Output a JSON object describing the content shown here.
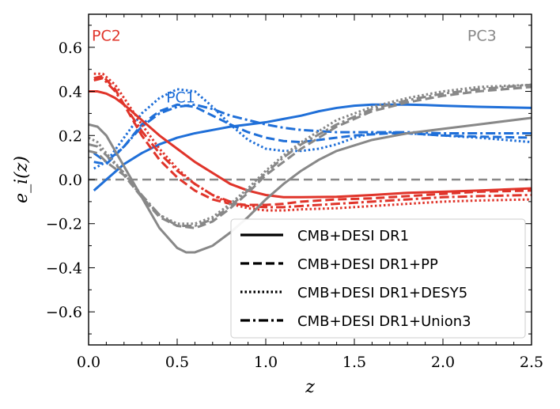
{
  "chart_data": {
    "type": "line",
    "xlabel": "z",
    "ylabel": "e_i(z)",
    "xlim": [
      0.0,
      2.5
    ],
    "ylim": [
      -0.75,
      0.75
    ],
    "xticks": [
      0.0,
      0.5,
      1.0,
      1.5,
      2.0,
      2.5
    ],
    "xtick_labels": [
      "0.0",
      "0.5",
      "1.0",
      "1.5",
      "2.0",
      "2.5"
    ],
    "yticks": [
      0.6,
      0.4,
      0.2,
      0.0,
      -0.2,
      -0.4,
      -0.6
    ],
    "ytick_labels": [
      "0.6",
      "0.4",
      "0.2",
      "0.0",
      "−0.2",
      "−0.4",
      "−0.6"
    ],
    "colors": {
      "PC1": "#1f6fd8",
      "PC2": "#e0342a",
      "PC3": "#888888"
    },
    "annotations": [
      {
        "text": "PC2",
        "component": "PC2",
        "x": 0.1,
        "y": 0.63
      },
      {
        "text": "PC1",
        "component": "PC1",
        "x": 0.52,
        "y": 0.35
      },
      {
        "text": "PC3",
        "component": "PC3",
        "x": 2.22,
        "y": 0.63
      }
    ],
    "legend": {
      "location": "lower-right",
      "entries": [
        {
          "label": "CMB+DESI DR1",
          "style": "solid"
        },
        {
          "label": "CMB+DESI DR1+PP",
          "style": "dashed"
        },
        {
          "label": "CMB+DESI DR1+DESY5",
          "style": "dotted"
        },
        {
          "label": "CMB+DESI DR1+Union3",
          "style": "dashdot"
        }
      ]
    },
    "series": [
      {
        "name": "PC1 CMB+DESI DR1",
        "component": "PC1",
        "style": "solid",
        "x": [
          0.03,
          0.1,
          0.2,
          0.3,
          0.4,
          0.5,
          0.6,
          0.7,
          0.8,
          0.9,
          1.0,
          1.1,
          1.2,
          1.3,
          1.4,
          1.5,
          1.6,
          1.7,
          1.8,
          1.9,
          2.0,
          2.2,
          2.5
        ],
        "y": [
          -0.05,
          0.0,
          0.07,
          0.12,
          0.16,
          0.19,
          0.21,
          0.225,
          0.24,
          0.25,
          0.26,
          0.275,
          0.29,
          0.31,
          0.325,
          0.335,
          0.34,
          0.34,
          0.34,
          0.338,
          0.335,
          0.33,
          0.325
        ]
      },
      {
        "name": "PC1 CMB+DESI DR1+PP",
        "component": "PC1",
        "style": "dashed",
        "x": [
          0.03,
          0.1,
          0.2,
          0.3,
          0.4,
          0.5,
          0.6,
          0.7,
          0.8,
          0.9,
          1.0,
          1.1,
          1.2,
          1.3,
          1.4,
          1.5,
          1.6,
          1.7,
          1.8,
          2.0,
          2.2,
          2.5
        ],
        "y": [
          0.08,
          0.07,
          0.15,
          0.25,
          0.31,
          0.34,
          0.33,
          0.29,
          0.25,
          0.215,
          0.19,
          0.175,
          0.17,
          0.18,
          0.19,
          0.2,
          0.205,
          0.21,
          0.21,
          0.2,
          0.195,
          0.19
        ]
      },
      {
        "name": "PC1 CMB+DESI DR1+DESY5",
        "component": "PC1",
        "style": "dotted",
        "x": [
          0.03,
          0.1,
          0.2,
          0.3,
          0.4,
          0.5,
          0.6,
          0.7,
          0.8,
          0.9,
          1.0,
          1.1,
          1.2,
          1.3,
          1.4,
          1.5,
          1.6,
          1.7,
          1.8,
          2.0,
          2.2,
          2.5
        ],
        "y": [
          0.05,
          0.08,
          0.19,
          0.3,
          0.37,
          0.41,
          0.4,
          0.33,
          0.25,
          0.18,
          0.14,
          0.13,
          0.13,
          0.14,
          0.16,
          0.19,
          0.21,
          0.215,
          0.21,
          0.2,
          0.19,
          0.17
        ]
      },
      {
        "name": "PC1 CMB+DESI DR1+Union3",
        "component": "PC1",
        "style": "dashdot",
        "x": [
          0.03,
          0.1,
          0.2,
          0.3,
          0.4,
          0.5,
          0.6,
          0.7,
          0.8,
          0.9,
          1.0,
          1.1,
          1.2,
          1.3,
          1.4,
          1.5,
          1.6,
          1.7,
          1.8,
          2.0,
          2.2,
          2.5
        ],
        "y": [
          0.12,
          0.08,
          0.15,
          0.24,
          0.3,
          0.33,
          0.34,
          0.32,
          0.29,
          0.27,
          0.25,
          0.235,
          0.225,
          0.22,
          0.215,
          0.215,
          0.215,
          0.215,
          0.215,
          0.21,
          0.21,
          0.21
        ]
      },
      {
        "name": "PC2 CMB+DESI DR1",
        "component": "PC2",
        "style": "solid",
        "x": [
          0.0,
          0.05,
          0.1,
          0.15,
          0.2,
          0.3,
          0.4,
          0.5,
          0.6,
          0.7,
          0.8,
          0.9,
          1.0,
          1.1,
          1.2,
          1.4,
          1.6,
          1.8,
          2.0,
          2.2,
          2.5
        ],
        "y": [
          0.4,
          0.4,
          0.39,
          0.37,
          0.34,
          0.27,
          0.2,
          0.14,
          0.08,
          0.03,
          -0.02,
          -0.05,
          -0.07,
          -0.08,
          -0.08,
          -0.078,
          -0.07,
          -0.06,
          -0.055,
          -0.05,
          -0.04
        ]
      },
      {
        "name": "PC2 CMB+DESI DR1+PP",
        "component": "PC2",
        "style": "dashed",
        "x": [
          0.03,
          0.08,
          0.15,
          0.2,
          0.3,
          0.4,
          0.5,
          0.6,
          0.7,
          0.8,
          0.9,
          1.0,
          1.1,
          1.2,
          1.4,
          1.6,
          1.8,
          2.0,
          2.2,
          2.5
        ],
        "y": [
          0.46,
          0.47,
          0.41,
          0.34,
          0.2,
          0.09,
          0.01,
          -0.05,
          -0.09,
          -0.11,
          -0.115,
          -0.115,
          -0.11,
          -0.1,
          -0.09,
          -0.085,
          -0.075,
          -0.065,
          -0.055,
          -0.05
        ]
      },
      {
        "name": "PC2 CMB+DESI DR1+DESY5",
        "component": "PC2",
        "style": "dotted",
        "x": [
          0.03,
          0.08,
          0.15,
          0.2,
          0.3,
          0.4,
          0.5,
          0.6,
          0.7,
          0.8,
          0.9,
          1.0,
          1.1,
          1.2,
          1.4,
          1.6,
          1.8,
          2.0,
          2.2,
          2.5
        ],
        "y": [
          0.48,
          0.48,
          0.43,
          0.37,
          0.25,
          0.14,
          0.05,
          -0.02,
          -0.07,
          -0.11,
          -0.13,
          -0.14,
          -0.14,
          -0.135,
          -0.13,
          -0.12,
          -0.11,
          -0.1,
          -0.095,
          -0.09
        ]
      },
      {
        "name": "PC2 CMB+DESI DR1+Union3",
        "component": "PC2",
        "style": "dashdot",
        "x": [
          0.03,
          0.08,
          0.15,
          0.2,
          0.3,
          0.4,
          0.5,
          0.6,
          0.7,
          0.8,
          0.9,
          1.0,
          1.1,
          1.2,
          1.4,
          1.6,
          1.8,
          2.0,
          2.2,
          2.5
        ],
        "y": [
          0.45,
          0.46,
          0.4,
          0.34,
          0.22,
          0.12,
          0.04,
          -0.02,
          -0.07,
          -0.1,
          -0.12,
          -0.125,
          -0.125,
          -0.12,
          -0.11,
          -0.1,
          -0.09,
          -0.08,
          -0.075,
          -0.07
        ]
      },
      {
        "name": "PC3 CMB+DESI DR1",
        "component": "PC3",
        "style": "solid",
        "x": [
          0.0,
          0.05,
          0.1,
          0.15,
          0.2,
          0.3,
          0.4,
          0.5,
          0.55,
          0.6,
          0.7,
          0.8,
          0.9,
          1.0,
          1.1,
          1.2,
          1.3,
          1.4,
          1.6,
          1.8,
          2.0,
          2.2,
          2.5
        ],
        "y": [
          0.25,
          0.24,
          0.2,
          0.13,
          0.06,
          -0.08,
          -0.22,
          -0.31,
          -0.33,
          -0.33,
          -0.3,
          -0.24,
          -0.17,
          -0.09,
          -0.02,
          0.04,
          0.09,
          0.13,
          0.18,
          0.21,
          0.23,
          0.25,
          0.28
        ]
      },
      {
        "name": "PC3 CMB+DESI DR1+PP",
        "component": "PC3",
        "style": "dashed",
        "x": [
          0.0,
          0.05,
          0.1,
          0.2,
          0.3,
          0.4,
          0.5,
          0.6,
          0.7,
          0.8,
          0.9,
          1.0,
          1.1,
          1.2,
          1.4,
          1.6,
          1.8,
          2.0,
          2.2,
          2.5
        ],
        "y": [
          0.13,
          0.12,
          0.08,
          0.02,
          -0.08,
          -0.17,
          -0.21,
          -0.22,
          -0.19,
          -0.13,
          -0.06,
          0.02,
          0.08,
          0.14,
          0.24,
          0.31,
          0.35,
          0.38,
          0.4,
          0.42
        ]
      },
      {
        "name": "PC3 CMB+DESI DR1+DESY5",
        "component": "PC3",
        "style": "dotted",
        "x": [
          0.0,
          0.05,
          0.1,
          0.2,
          0.3,
          0.4,
          0.5,
          0.6,
          0.7,
          0.8,
          0.9,
          1.0,
          1.1,
          1.2,
          1.4,
          1.6,
          1.8,
          2.0,
          2.2,
          2.5
        ],
        "y": [
          0.19,
          0.17,
          0.12,
          0.03,
          -0.08,
          -0.16,
          -0.2,
          -0.2,
          -0.17,
          -0.11,
          -0.04,
          0.04,
          0.11,
          0.17,
          0.27,
          0.33,
          0.37,
          0.4,
          0.42,
          0.43
        ]
      },
      {
        "name": "PC3 CMB+DESI DR1+Union3",
        "component": "PC3",
        "style": "dashdot",
        "x": [
          0.0,
          0.05,
          0.1,
          0.2,
          0.3,
          0.4,
          0.5,
          0.6,
          0.7,
          0.8,
          0.9,
          1.0,
          1.1,
          1.2,
          1.4,
          1.6,
          1.8,
          2.0,
          2.2,
          2.5
        ],
        "y": [
          0.16,
          0.15,
          0.11,
          0.03,
          -0.07,
          -0.16,
          -0.21,
          -0.21,
          -0.18,
          -0.12,
          -0.05,
          0.03,
          0.1,
          0.16,
          0.25,
          0.32,
          0.36,
          0.39,
          0.41,
          0.43
        ]
      }
    ]
  }
}
